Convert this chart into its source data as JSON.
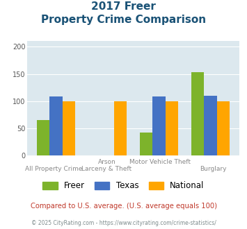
{
  "title_line1": "2017 Freer",
  "title_line2": "Property Crime Comparison",
  "cat_labels_row1": [
    "",
    "Arson",
    "Motor Vehicle Theft",
    ""
  ],
  "cat_labels_row2": [
    "All Property Crime",
    "Larceny & Theft",
    "",
    "Burglary"
  ],
  "freer": [
    65,
    0,
    43,
    153
  ],
  "texas": [
    109,
    0,
    109,
    110
  ],
  "national": [
    100,
    100,
    100,
    100
  ],
  "freer_color": "#7db32b",
  "texas_color": "#4472c4",
  "national_color": "#ffa500",
  "bg_color": "#dce8ee",
  "ylim": [
    0,
    210
  ],
  "yticks": [
    0,
    50,
    100,
    150,
    200
  ],
  "title_color": "#1a5276",
  "subtitle_note": "Compared to U.S. average. (U.S. average equals 100)",
  "footer": "© 2025 CityRating.com - https://www.cityrating.com/crime-statistics/",
  "subtitle_color": "#c0392b",
  "footer_color": "#7f8c8d",
  "legend_labels": [
    "Freer",
    "Texas",
    "National"
  ],
  "bar_width": 0.25,
  "group_positions": [
    0,
    1,
    2,
    3
  ]
}
